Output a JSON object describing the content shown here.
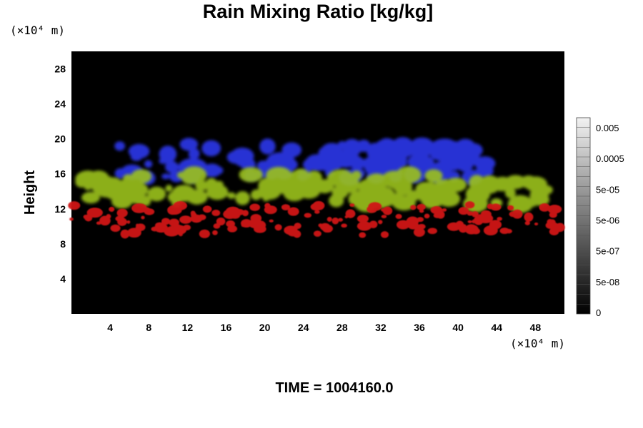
{
  "chart_data": {
    "type": "heatmap",
    "title": "Rain Mixing Ratio [kg/kg]",
    "ylabel": "Height",
    "xunit": "(×10⁴ m)",
    "yunit": "(×10⁴ m)",
    "xlim": [
      0,
      51
    ],
    "ylim": [
      0,
      30
    ],
    "x_ticks": [
      "4",
      "8",
      "12",
      "16",
      "20",
      "24",
      "28",
      "32",
      "36",
      "40",
      "44",
      "48"
    ],
    "y_ticks": [
      "4",
      "8",
      "12",
      "16",
      "20",
      "24",
      "28"
    ],
    "colorbar_ticks": [
      "0.005",
      "0.0005",
      "5e-05",
      "5e-06",
      "5e-07",
      "5e-08",
      "0"
    ],
    "background_color": "#000000",
    "layers": [
      {
        "color": "#2a35e0",
        "y_range": [
          15.5,
          19.5
        ],
        "x_range": [
          5,
          43
        ]
      },
      {
        "color": "#9cc21a",
        "y_range": [
          12.5,
          16
        ],
        "x_range": [
          1,
          50
        ]
      },
      {
        "color": "#d01818",
        "y_range": [
          9,
          12.5
        ],
        "x_range": [
          0,
          51
        ]
      }
    ]
  },
  "footer": {
    "time_label": "TIME = 1004160.0"
  }
}
